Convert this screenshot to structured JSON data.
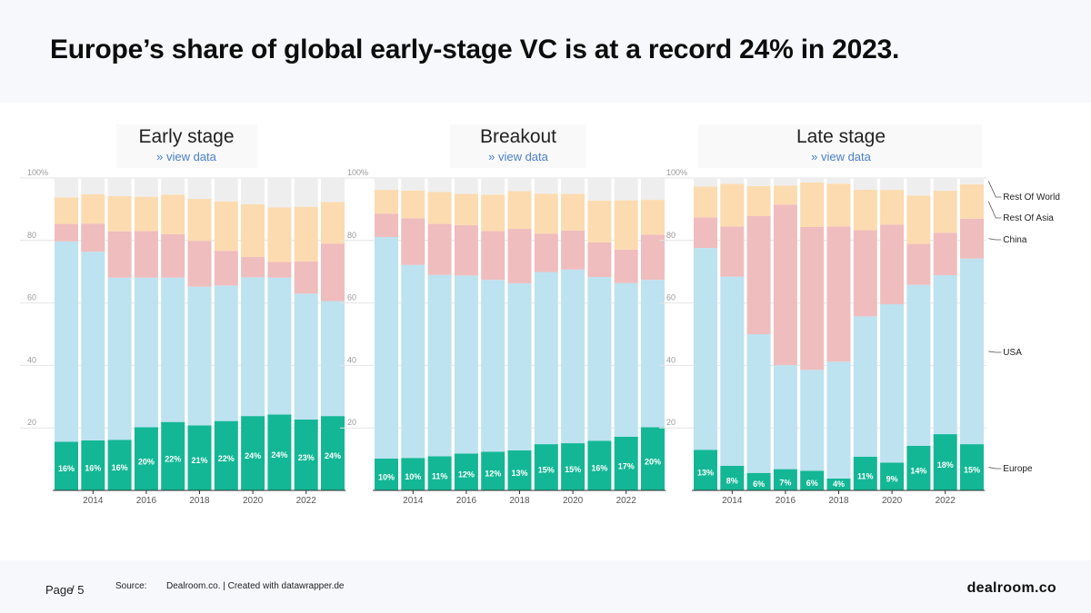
{
  "header": {
    "title": "Europe’s share of global early-stage VC is at a record 24% in 2023."
  },
  "footer": {
    "page_label": "Page",
    "page_suffix": "/ 5",
    "source_label": "Source:",
    "source_text": "Dealroom.co. | Created with datawrapper.de",
    "brand": "dealroom.co"
  },
  "view_data_label": "» view data",
  "colors": {
    "Europe": "#13b795",
    "USA": "#bde2f0",
    "China": "#efbdbd",
    "Rest Of Asia": "#fcdbb0",
    "Rest Of World": "#eeeeee"
  },
  "chart_data": [
    {
      "type": "bar",
      "stacked": true,
      "title": "Early stage",
      "categories": [
        "2013",
        "2014",
        "2015",
        "2016",
        "2017",
        "2018",
        "2019",
        "2020",
        "2021",
        "2022",
        "2023"
      ],
      "x_tick_labels": [
        "2014",
        "2016",
        "2018",
        "2020",
        "2022"
      ],
      "y_tick_labels": [
        "100%",
        "80",
        "60",
        "40",
        "20"
      ],
      "ylim": [
        0,
        100
      ],
      "europe_labels": [
        "16%",
        "16%",
        "16%",
        "20%",
        "22%",
        "21%",
        "22%",
        "24%",
        "24%",
        "23%",
        "24%"
      ],
      "series": [
        {
          "name": "Europe",
          "values": [
            15.6,
            16,
            16.2,
            20.2,
            21.9,
            20.8,
            22.2,
            23.8,
            24.3,
            22.7,
            23.8
          ]
        },
        {
          "name": "USA",
          "values": [
            64.1,
            60.4,
            51.9,
            47.9,
            46.2,
            44.4,
            43.4,
            44.4,
            43.8,
            40.3,
            36.8
          ]
        },
        {
          "name": "China",
          "values": [
            5.6,
            9,
            14.8,
            14.9,
            13.9,
            14.7,
            11.1,
            6.5,
            5,
            10.3,
            18.4
          ]
        },
        {
          "name": "Rest Of Asia",
          "values": [
            8.5,
            9.4,
            11.3,
            11,
            12.7,
            13.4,
            15.8,
            16.9,
            17.5,
            17.5,
            13.3
          ]
        },
        {
          "name": "Rest Of World",
          "values": [
            6.2,
            5.2,
            5.8,
            6,
            5.3,
            6.7,
            7.5,
            8.4,
            9.4,
            9.2,
            7.7
          ]
        }
      ]
    },
    {
      "type": "bar",
      "stacked": true,
      "title": "Breakout",
      "categories": [
        "2013",
        "2014",
        "2015",
        "2016",
        "2017",
        "2018",
        "2019",
        "2020",
        "2021",
        "2022",
        "2023"
      ],
      "x_tick_labels": [
        "2014",
        "2016",
        "2018",
        "2020",
        "2022"
      ],
      "y_tick_labels": [
        "100%",
        "80",
        "60",
        "40",
        "20"
      ],
      "ylim": [
        0,
        100
      ],
      "europe_labels": [
        "10%",
        "10%",
        "11%",
        "12%",
        "12%",
        "13%",
        "15%",
        "15%",
        "16%",
        "17%",
        "20%"
      ],
      "series": [
        {
          "name": "Europe",
          "values": [
            10.2,
            10.4,
            10.9,
            11.8,
            12.4,
            12.8,
            14.8,
            15.1,
            15.9,
            17.2,
            20.2
          ]
        },
        {
          "name": "USA",
          "values": [
            70.9,
            61.8,
            58.1,
            57,
            55,
            53.5,
            55.1,
            55.6,
            52.4,
            49.2,
            47.2
          ]
        },
        {
          "name": "China",
          "values": [
            7.5,
            14.9,
            16.3,
            16.1,
            15.6,
            17.4,
            12.3,
            12.5,
            11.1,
            10.7,
            14.5
          ]
        },
        {
          "name": "Rest Of Asia",
          "values": [
            7.6,
            8.9,
            10.2,
            10,
            11.7,
            12.1,
            12.8,
            11.7,
            13.4,
            15.8,
            11.1
          ]
        },
        {
          "name": "Rest Of World",
          "values": [
            3.8,
            4,
            4.5,
            5.1,
            5.3,
            4.2,
            5,
            5.1,
            7.2,
            7.1,
            7
          ]
        }
      ]
    },
    {
      "type": "bar",
      "stacked": true,
      "title": "Late stage",
      "categories": [
        "2013",
        "2014",
        "2015",
        "2016",
        "2017",
        "2018",
        "2019",
        "2020",
        "2021",
        "2022",
        "2023"
      ],
      "x_tick_labels": [
        "2014",
        "2016",
        "2018",
        "2020",
        "2022"
      ],
      "y_tick_labels": [
        "100%",
        "80",
        "60",
        "40",
        "20"
      ],
      "ylim": [
        0,
        100
      ],
      "europe_labels": [
        "13%",
        "8%",
        "6%",
        "7%",
        "6%",
        "4%",
        "11%",
        "9%",
        "14%",
        "18%",
        "15%"
      ],
      "legend_labels": [
        "Rest Of World",
        "Rest Of Asia",
        "China",
        "USA",
        "Europe"
      ],
      "series": [
        {
          "name": "Europe",
          "values": [
            13,
            7.9,
            5.6,
            6.8,
            6.3,
            3.8,
            10.8,
            8.9,
            14.3,
            18,
            14.8
          ]
        },
        {
          "name": "USA",
          "values": [
            64.6,
            60.5,
            44.4,
            33.3,
            32.3,
            37.4,
            44.9,
            50.7,
            51.5,
            50.9,
            59.4
          ]
        },
        {
          "name": "China",
          "values": [
            9.8,
            16.1,
            37.8,
            51.4,
            45.7,
            43.3,
            27.6,
            25.5,
            13.1,
            13.6,
            12.8
          ]
        },
        {
          "name": "Rest Of Asia",
          "values": [
            9.9,
            13.6,
            9.6,
            6.1,
            14.3,
            13.7,
            13,
            11.1,
            15.5,
            13.4,
            11
          ]
        },
        {
          "name": "Rest Of World",
          "values": [
            2.7,
            1.9,
            2.6,
            2.4,
            1.4,
            1.8,
            3.7,
            3.8,
            5.6,
            4.1,
            2
          ]
        }
      ]
    }
  ]
}
